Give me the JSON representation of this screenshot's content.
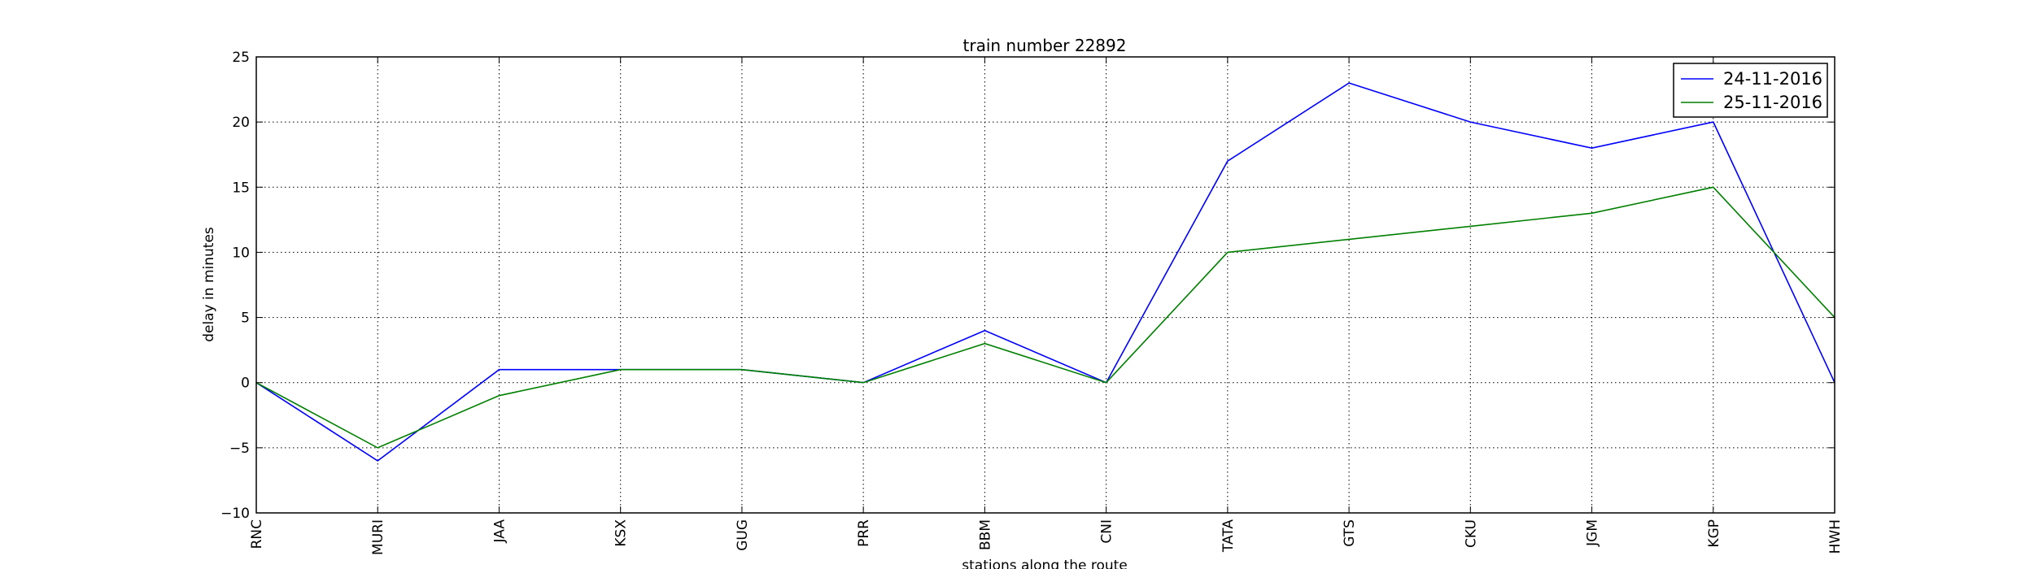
{
  "chart_data": {
    "type": "line",
    "title": "train number 22892",
    "xlabel": "stations along the route",
    "ylabel": "delay in minutes",
    "categories": [
      "RNC",
      "MURI",
      "JAA",
      "KSX",
      "GUG",
      "PRR",
      "BBM",
      "CNI",
      "TATA",
      "GTS",
      "CKU",
      "JGM",
      "KGP",
      "HWH"
    ],
    "ylim": [
      -10,
      25
    ],
    "yticks": [
      -10,
      -5,
      0,
      5,
      10,
      15,
      20,
      25
    ],
    "grid": true,
    "legend_position": "top-right",
    "series": [
      {
        "name": "24-11-2016",
        "color": "#0000ff",
        "values": [
          0,
          -6,
          1,
          1,
          1,
          0,
          4,
          0,
          17,
          23,
          20,
          18,
          20,
          0
        ]
      },
      {
        "name": "25-11-2016",
        "color": "#008000",
        "values": [
          0,
          -5,
          -1,
          1,
          1,
          0,
          3,
          0,
          10,
          11,
          12,
          13,
          15,
          5
        ]
      }
    ]
  }
}
